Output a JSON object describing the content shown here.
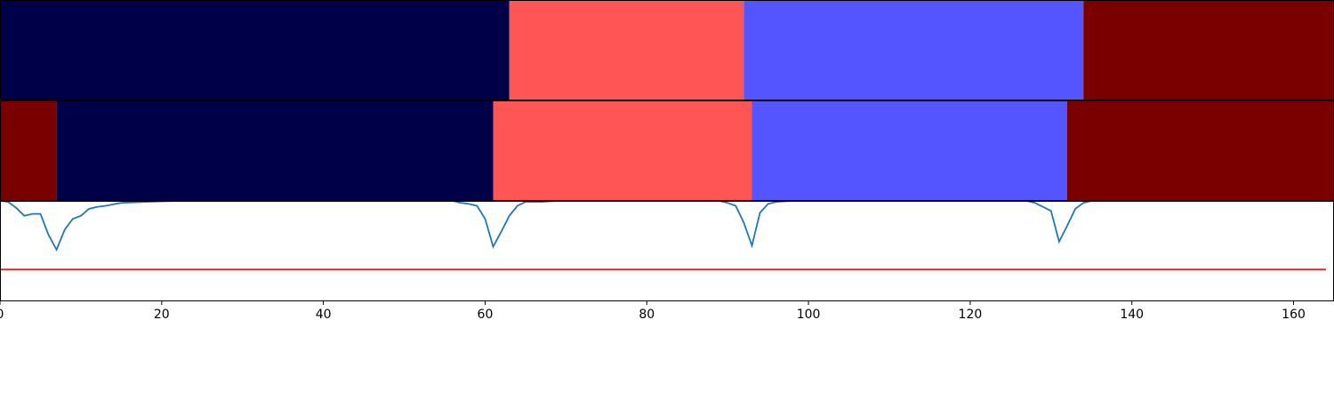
{
  "chart_data": {
    "type": "heatmap",
    "title": "",
    "xlabel": "",
    "ylabel": "",
    "xlim": [
      0,
      165
    ],
    "grid": false,
    "x_ticks": [
      "0",
      "20",
      "40",
      "60",
      "80",
      "100",
      "120",
      "140",
      "160"
    ],
    "x_tick_values": [
      0,
      20,
      40,
      60,
      80,
      100,
      120,
      140,
      160
    ],
    "segment_rows": [
      {
        "segments": [
          {
            "start": 0,
            "end": 63,
            "color": "#000048"
          },
          {
            "start": 63,
            "end": 92,
            "color": "#ff5555"
          },
          {
            "start": 92,
            "end": 134,
            "color": "#5555ff"
          },
          {
            "start": 134,
            "end": 165,
            "color": "#7a0000"
          }
        ]
      },
      {
        "segments": [
          {
            "start": 0,
            "end": 7,
            "color": "#7a0000"
          },
          {
            "start": 7,
            "end": 61,
            "color": "#000048"
          },
          {
            "start": 61,
            "end": 93,
            "color": "#ff5555"
          },
          {
            "start": 93,
            "end": 132,
            "color": "#5555ff"
          },
          {
            "start": 132,
            "end": 165,
            "color": "#7a0000"
          }
        ]
      }
    ],
    "line_panel": {
      "ylim": [
        0,
        1
      ],
      "series": [
        {
          "color": "#1f77b4",
          "points": [
            [
              0,
              1.0
            ],
            [
              1,
              0.99
            ],
            [
              2,
              0.93
            ],
            [
              3,
              0.85
            ],
            [
              4,
              0.87
            ],
            [
              5,
              0.87
            ],
            [
              6,
              0.66
            ],
            [
              7,
              0.51
            ],
            [
              8,
              0.71
            ],
            [
              9,
              0.82
            ],
            [
              10,
              0.85
            ],
            [
              11,
              0.92
            ],
            [
              12,
              0.94
            ],
            [
              13,
              0.95
            ],
            [
              15,
              0.98
            ],
            [
              18,
              0.99
            ],
            [
              22,
              1.0
            ],
            [
              165,
              1.0
            ]
          ]
        },
        {
          "color": "#1f77b4",
          "points": [
            [
              56,
              1.0
            ],
            [
              57,
              0.98
            ],
            [
              58,
              0.97
            ],
            [
              59,
              0.95
            ],
            [
              60,
              0.82
            ],
            [
              61,
              0.54
            ],
            [
              62,
              0.69
            ],
            [
              63,
              0.85
            ],
            [
              64,
              0.95
            ],
            [
              65,
              0.99
            ],
            [
              67,
              0.99
            ],
            [
              69,
              1.0
            ]
          ]
        },
        {
          "color": "#1f77b4",
          "points": [
            [
              89,
              1.0
            ],
            [
              90,
              0.98
            ],
            [
              91,
              0.95
            ],
            [
              92,
              0.78
            ],
            [
              93,
              0.55
            ],
            [
              94,
              0.88
            ],
            [
              95,
              0.97
            ],
            [
              96,
              0.99
            ],
            [
              98,
              1.0
            ]
          ]
        },
        {
          "color": "#1f77b4",
          "points": [
            [
              127,
              1.0
            ],
            [
              128,
              0.98
            ],
            [
              129,
              0.94
            ],
            [
              130,
              0.9
            ],
            [
              131,
              0.59
            ],
            [
              132,
              0.75
            ],
            [
              133,
              0.92
            ],
            [
              134,
              0.98
            ],
            [
              135,
              1.0
            ]
          ]
        }
      ],
      "threshold": {
        "value": 0.31,
        "x_end": 164,
        "color": "#d62728"
      }
    }
  }
}
